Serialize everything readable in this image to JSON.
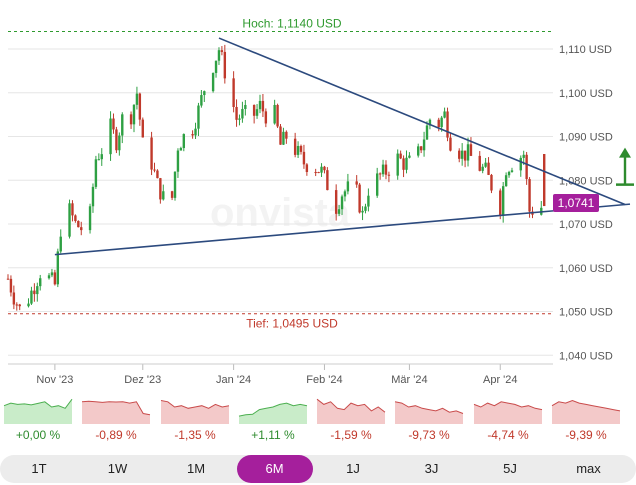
{
  "chart_data": {
    "type": "candlestick",
    "y_unit": "USD",
    "ylim": [
      1.038,
      1.118
    ],
    "y_ticks": [
      "1,110 USD",
      "1,100 USD",
      "1,090 USD",
      "1,080 USD",
      "1,070 USD",
      "1,060 USD",
      "1,050 USD",
      "1,040 USD"
    ],
    "y_tick_values": [
      1.11,
      1.1,
      1.09,
      1.08,
      1.07,
      1.06,
      1.05,
      1.04
    ],
    "x_ticks": [
      "Nov '23",
      "Dez '23",
      "Jan '24",
      "Feb '24",
      "Mär '24",
      "Apr '24"
    ],
    "x_tick_dates": [
      "2023-11-01",
      "2023-12-01",
      "2024-01-01",
      "2024-02-01",
      "2024-03-01",
      "2024-04-01"
    ],
    "x_range": [
      "2023-10-16",
      "2024-04-19"
    ],
    "close_series": [
      [
        "2023-10-16",
        1.0575
      ],
      [
        "2023-10-18",
        1.0535
      ],
      [
        "2023-10-20",
        1.0505
      ],
      [
        "2023-10-23",
        1.053
      ],
      [
        "2023-10-25",
        1.056
      ],
      [
        "2023-10-27",
        1.059
      ],
      [
        "2023-10-30",
        1.0575
      ],
      [
        "2023-11-01",
        1.056
      ],
      [
        "2023-11-03",
        1.069
      ],
      [
        "2023-11-06",
        1.073
      ],
      [
        "2023-11-08",
        1.07
      ],
      [
        "2023-11-10",
        1.069
      ],
      [
        "2023-11-13",
        1.072
      ],
      [
        "2023-11-15",
        1.085
      ],
      [
        "2023-11-17",
        1.087
      ],
      [
        "2023-11-20",
        1.092
      ],
      [
        "2023-11-22",
        1.089
      ],
      [
        "2023-11-24",
        1.094
      ],
      [
        "2023-11-27",
        1.095
      ],
      [
        "2023-11-29",
        1.1
      ],
      [
        "2023-12-01",
        1.088
      ],
      [
        "2023-12-04",
        1.084
      ],
      [
        "2023-12-06",
        1.079
      ],
      [
        "2023-12-08",
        1.076
      ],
      [
        "2023-12-11",
        1.076
      ],
      [
        "2023-12-13",
        1.088
      ],
      [
        "2023-12-15",
        1.09
      ],
      [
        "2023-12-18",
        1.092
      ],
      [
        "2023-12-20",
        1.096
      ],
      [
        "2023-12-22",
        1.101
      ],
      [
        "2023-12-27",
        1.11
      ],
      [
        "2023-12-29",
        1.105
      ],
      [
        "2024-01-02",
        1.094
      ],
      [
        "2024-01-04",
        1.095
      ],
      [
        "2024-01-08",
        1.095
      ],
      [
        "2024-01-10",
        1.097
      ],
      [
        "2024-01-12",
        1.095
      ],
      [
        "2024-01-15",
        1.095
      ],
      [
        "2024-01-17",
        1.088
      ],
      [
        "2024-01-19",
        1.09
      ],
      [
        "2024-01-23",
        1.086
      ],
      [
        "2024-01-25",
        1.084
      ],
      [
        "2024-01-29",
        1.083
      ],
      [
        "2024-01-31",
        1.082
      ],
      [
        "2024-02-02",
        1.079
      ],
      [
        "2024-02-05",
        1.074
      ],
      [
        "2024-02-07",
        1.077
      ],
      [
        "2024-02-09",
        1.078
      ],
      [
        "2024-02-12",
        1.077
      ],
      [
        "2024-02-14",
        1.072
      ],
      [
        "2024-02-16",
        1.078
      ],
      [
        "2024-02-20",
        1.081
      ],
      [
        "2024-02-22",
        1.082
      ],
      [
        "2024-02-26",
        1.085
      ],
      [
        "2024-02-28",
        1.084
      ],
      [
        "2024-03-01",
        1.084
      ],
      [
        "2024-03-04",
        1.086
      ],
      [
        "2024-03-06",
        1.09
      ],
      [
        "2024-03-08",
        1.094
      ],
      [
        "2024-03-11",
        1.093
      ],
      [
        "2024-03-13",
        1.095
      ],
      [
        "2024-03-15",
        1.089
      ],
      [
        "2024-03-19",
        1.086
      ],
      [
        "2024-03-21",
        1.086
      ],
      [
        "2024-03-25",
        1.083
      ],
      [
        "2024-03-27",
        1.082
      ],
      [
        "2024-04-01",
        1.074
      ],
      [
        "2024-04-03",
        1.083
      ],
      [
        "2024-04-05",
        1.084
      ],
      [
        "2024-04-09",
        1.086
      ],
      [
        "2024-04-11",
        1.073
      ],
      [
        "2024-04-16",
        1.0741
      ]
    ],
    "annotations": {
      "high_label": "Hoch: 1,1140 USD",
      "high_value": 1.114,
      "low_label": "Tief: 1,0495 USD",
      "low_value": 1.0495,
      "last_price_label": "1,0741",
      "last_price": 1.0741
    },
    "trendlines": [
      {
        "name": "upper",
        "from": [
          "2023-12-27",
          1.1125
        ],
        "to": [
          "2024-04-19",
          1.0812
        ]
      },
      {
        "name": "lower",
        "from": [
          "2023-11-01",
          1.063
        ],
        "to": [
          "2024-04-19",
          1.073
        ]
      }
    ],
    "arrow": {
      "date": "2024-04-19",
      "from": 1.079,
      "to": 1.087
    },
    "grid": true,
    "watermark": "onvista",
    "colors": {
      "up": "#2ea043",
      "down": "#c0392b",
      "trend": "#2c4a7e",
      "high": "#2f9a2f",
      "low": "#c0392b",
      "arrow": "#2e8b2e",
      "badge": "#a51f9c"
    }
  },
  "mini_charts": [
    {
      "label": "+0,00 %",
      "trend": "up",
      "points": [
        0.45,
        0.35,
        0.4,
        0.38,
        0.42,
        0.36,
        0.3,
        0.5,
        0.45,
        0.55,
        0.2
      ]
    },
    {
      "label": "-0,89 %",
      "trend": "down",
      "points": [
        0.3,
        0.28,
        0.3,
        0.32,
        0.3,
        0.31,
        0.3,
        0.35,
        0.3,
        0.75,
        0.8
      ]
    },
    {
      "label": "-1,35 %",
      "trend": "down",
      "points": [
        0.25,
        0.3,
        0.5,
        0.45,
        0.55,
        0.5,
        0.45,
        0.55,
        0.4,
        0.5,
        0.45
      ]
    },
    {
      "label": "+1,11 %",
      "trend": "up",
      "points": [
        0.85,
        0.8,
        0.78,
        0.6,
        0.55,
        0.5,
        0.4,
        0.35,
        0.45,
        0.4,
        0.45
      ]
    },
    {
      "label": "-1,59 %",
      "trend": "down",
      "points": [
        0.2,
        0.4,
        0.3,
        0.55,
        0.6,
        0.35,
        0.45,
        0.4,
        0.65,
        0.5,
        0.7
      ]
    },
    {
      "label": "-9,73 %",
      "trend": "down",
      "points": [
        0.3,
        0.35,
        0.5,
        0.45,
        0.55,
        0.6,
        0.65,
        0.55,
        0.7,
        0.65,
        0.75
      ]
    },
    {
      "label": "-4,74 %",
      "trend": "down",
      "points": [
        0.4,
        0.5,
        0.35,
        0.45,
        0.3,
        0.35,
        0.4,
        0.5,
        0.45,
        0.55,
        0.6
      ]
    },
    {
      "label": "-9,39 %",
      "trend": "down",
      "points": [
        0.45,
        0.3,
        0.35,
        0.25,
        0.35,
        0.4,
        0.45,
        0.5,
        0.55,
        0.6,
        0.65
      ]
    }
  ],
  "periods": [
    {
      "label": "1T",
      "active": false
    },
    {
      "label": "1W",
      "active": false
    },
    {
      "label": "1M",
      "active": false
    },
    {
      "label": "6M",
      "active": true
    },
    {
      "label": "1J",
      "active": false
    },
    {
      "label": "3J",
      "active": false
    },
    {
      "label": "5J",
      "active": false
    },
    {
      "label": "max",
      "active": false
    }
  ]
}
